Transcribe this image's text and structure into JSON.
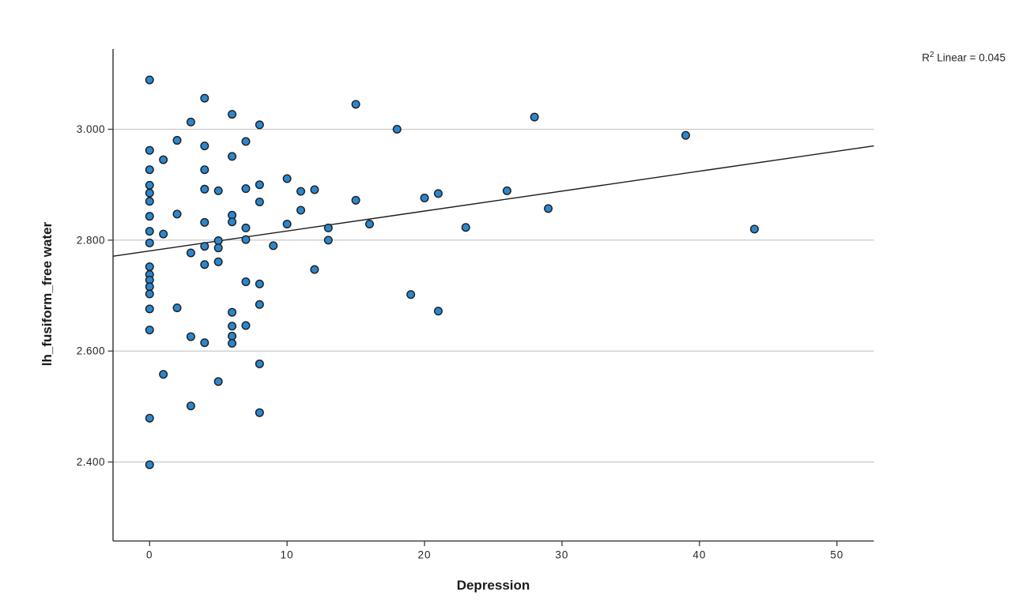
{
  "figure": {
    "background": "#ffffff",
    "annotation": {
      "r": "R",
      "sup": "2",
      "rest": " Linear = 0.045"
    }
  },
  "chart_data": {
    "type": "scatter",
    "title": "",
    "xlabel": "Depression",
    "ylabel": "lh_fusiform_free water",
    "annotation": "R² Linear = 0.045",
    "r_squared": 0.045,
    "legend": "none",
    "grid": "horizontal",
    "xlim": [
      -2.66,
      52.69
    ],
    "ylim": [
      2.2575,
      3.1447
    ],
    "xtick_values": [
      0,
      10,
      20,
      30,
      40,
      50
    ],
    "xtick_labels": [
      "0",
      "10",
      "20",
      "30",
      "40",
      "50"
    ],
    "ytick_values": [
      2.4,
      2.6,
      2.8,
      3.0
    ],
    "ytick_labels": [
      "2.400",
      "2.600",
      "2.800",
      "3.000"
    ],
    "fit_line": {
      "x1": -2.66,
      "y1": 2.771,
      "x2": 52.69,
      "y2": 2.97
    },
    "points": [
      [
        0,
        3.089
      ],
      [
        0,
        2.962
      ],
      [
        0,
        2.927
      ],
      [
        0,
        2.899
      ],
      [
        0,
        2.885
      ],
      [
        0,
        2.87
      ],
      [
        0,
        2.843
      ],
      [
        0,
        2.816
      ],
      [
        0,
        2.795
      ],
      [
        0,
        2.752
      ],
      [
        0,
        2.738
      ],
      [
        0,
        2.728
      ],
      [
        0,
        2.716
      ],
      [
        0,
        2.703
      ],
      [
        0,
        2.676
      ],
      [
        0,
        2.638
      ],
      [
        0,
        2.479
      ],
      [
        0,
        2.395
      ],
      [
        1,
        2.945
      ],
      [
        1,
        2.811
      ],
      [
        1,
        2.558
      ],
      [
        2,
        2.98
      ],
      [
        2,
        2.847
      ],
      [
        2,
        2.678
      ],
      [
        3,
        3.013
      ],
      [
        3,
        2.777
      ],
      [
        3,
        2.626
      ],
      [
        3,
        2.501
      ],
      [
        4,
        3.056
      ],
      [
        4,
        2.97
      ],
      [
        4,
        2.927
      ],
      [
        4,
        2.892
      ],
      [
        4,
        2.832
      ],
      [
        4,
        2.789
      ],
      [
        4,
        2.756
      ],
      [
        4,
        2.615
      ],
      [
        5,
        2.889
      ],
      [
        5,
        2.799
      ],
      [
        5,
        2.786
      ],
      [
        5,
        2.761
      ],
      [
        5,
        2.545
      ],
      [
        6,
        3.027
      ],
      [
        6,
        2.951
      ],
      [
        6,
        2.845
      ],
      [
        6,
        2.833
      ],
      [
        6,
        2.67
      ],
      [
        6,
        2.645
      ],
      [
        6,
        2.627
      ],
      [
        6,
        2.614
      ],
      [
        7,
        2.978
      ],
      [
        7,
        2.893
      ],
      [
        7,
        2.822
      ],
      [
        7,
        2.801
      ],
      [
        7,
        2.725
      ],
      [
        7,
        2.646
      ],
      [
        8,
        3.008
      ],
      [
        8,
        2.9
      ],
      [
        8,
        2.869
      ],
      [
        8,
        2.721
      ],
      [
        8,
        2.684
      ],
      [
        8,
        2.577
      ],
      [
        8,
        2.489
      ],
      [
        9,
        2.79
      ],
      [
        10,
        2.911
      ],
      [
        10,
        2.829
      ],
      [
        11,
        2.888
      ],
      [
        11,
        2.854
      ],
      [
        12,
        2.891
      ],
      [
        12,
        2.747
      ],
      [
        13,
        2.822
      ],
      [
        13,
        2.8
      ],
      [
        15,
        3.045
      ],
      [
        15,
        2.872
      ],
      [
        16,
        2.829
      ],
      [
        18,
        3.0
      ],
      [
        19,
        2.702
      ],
      [
        20,
        2.876
      ],
      [
        21,
        2.884
      ],
      [
        21,
        2.672
      ],
      [
        23,
        2.823
      ],
      [
        26,
        2.889
      ],
      [
        28,
        3.022
      ],
      [
        29,
        2.857
      ],
      [
        39,
        2.989
      ],
      [
        44,
        2.82
      ]
    ],
    "colors": {
      "point_fill": "#2b87cd",
      "point_stroke": "#1c1c1c",
      "fit_line": "#1a1a1a",
      "gridline": "#c4c4c4",
      "axis": "#3c3c3c",
      "text": "#262626"
    }
  }
}
